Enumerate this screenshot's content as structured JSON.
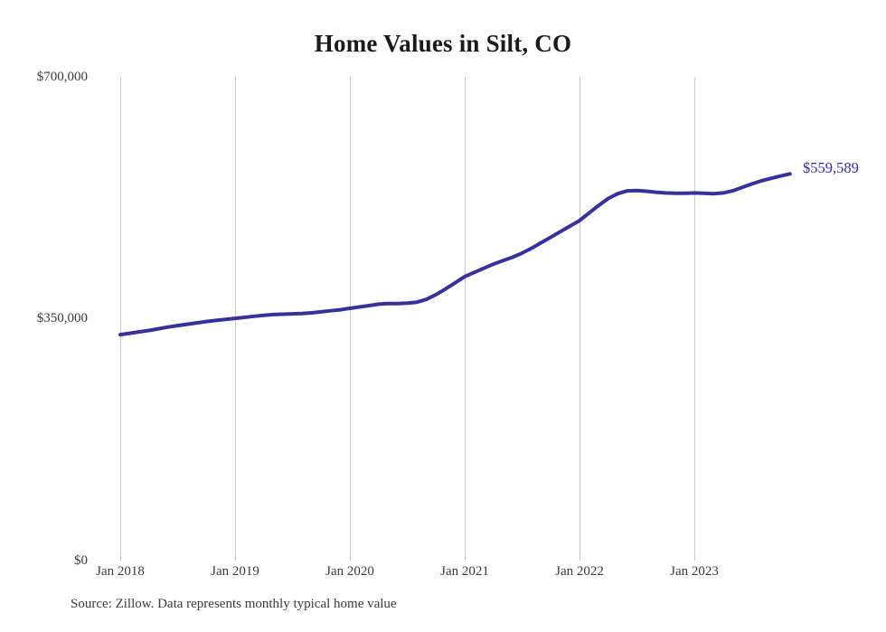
{
  "title": "Home Values in Silt, CO",
  "source_note": "Source: Zillow. Data represents monthly typical home value",
  "end_label": "$559,589",
  "colors": {
    "line": "#37329b",
    "end_label": "#332d9e",
    "grid": "#cccccc",
    "title_text": "#1a1a1a",
    "axis_text": "#3a3a3a",
    "background": "#ffffff"
  },
  "chart_data": {
    "type": "line",
    "title": "Home Values in Silt, CO",
    "xlabel": "",
    "ylabel": "",
    "ylim": [
      0,
      700000
    ],
    "grid": "vertical-only",
    "legend": "none",
    "x_interval": "monthly",
    "x_start": "Jan 2018",
    "x_end": "Nov 2023",
    "final_value": 559589,
    "final_value_label": "$559,589",
    "y_tick_labels": [
      "$0",
      "$350,000",
      "$700,000"
    ],
    "y_tick_values": [
      0,
      350000,
      700000
    ],
    "x_tick_labels": [
      "Jan 2018",
      "Jan 2019",
      "Jan 2020",
      "Jan 2021",
      "Jan 2022",
      "Jan 2023"
    ],
    "x_tick_month_indices": [
      0,
      12,
      24,
      36,
      48,
      60
    ],
    "series": [
      {
        "name": "Monthly typical home value",
        "values": [
          327000,
          329000,
          331000,
          333000,
          335500,
          338000,
          340000,
          342000,
          344000,
          346000,
          347500,
          349000,
          350500,
          352000,
          353500,
          355000,
          356000,
          356500,
          357000,
          357500,
          358500,
          360000,
          361500,
          363000,
          365000,
          367000,
          369000,
          371000,
          372000,
          372000,
          372500,
          374000,
          378000,
          385000,
          393000,
          402000,
          411000,
          417000,
          423000,
          429000,
          434000,
          439000,
          445000,
          452000,
          460000,
          468000,
          476000,
          484000,
          492000,
          503000,
          514000,
          524000,
          531000,
          535000,
          535500,
          534500,
          533000,
          532000,
          531500,
          531500,
          532000,
          531500,
          531000,
          532000,
          535000,
          540000,
          545000,
          549500,
          553000,
          556500,
          559589
        ]
      }
    ]
  }
}
